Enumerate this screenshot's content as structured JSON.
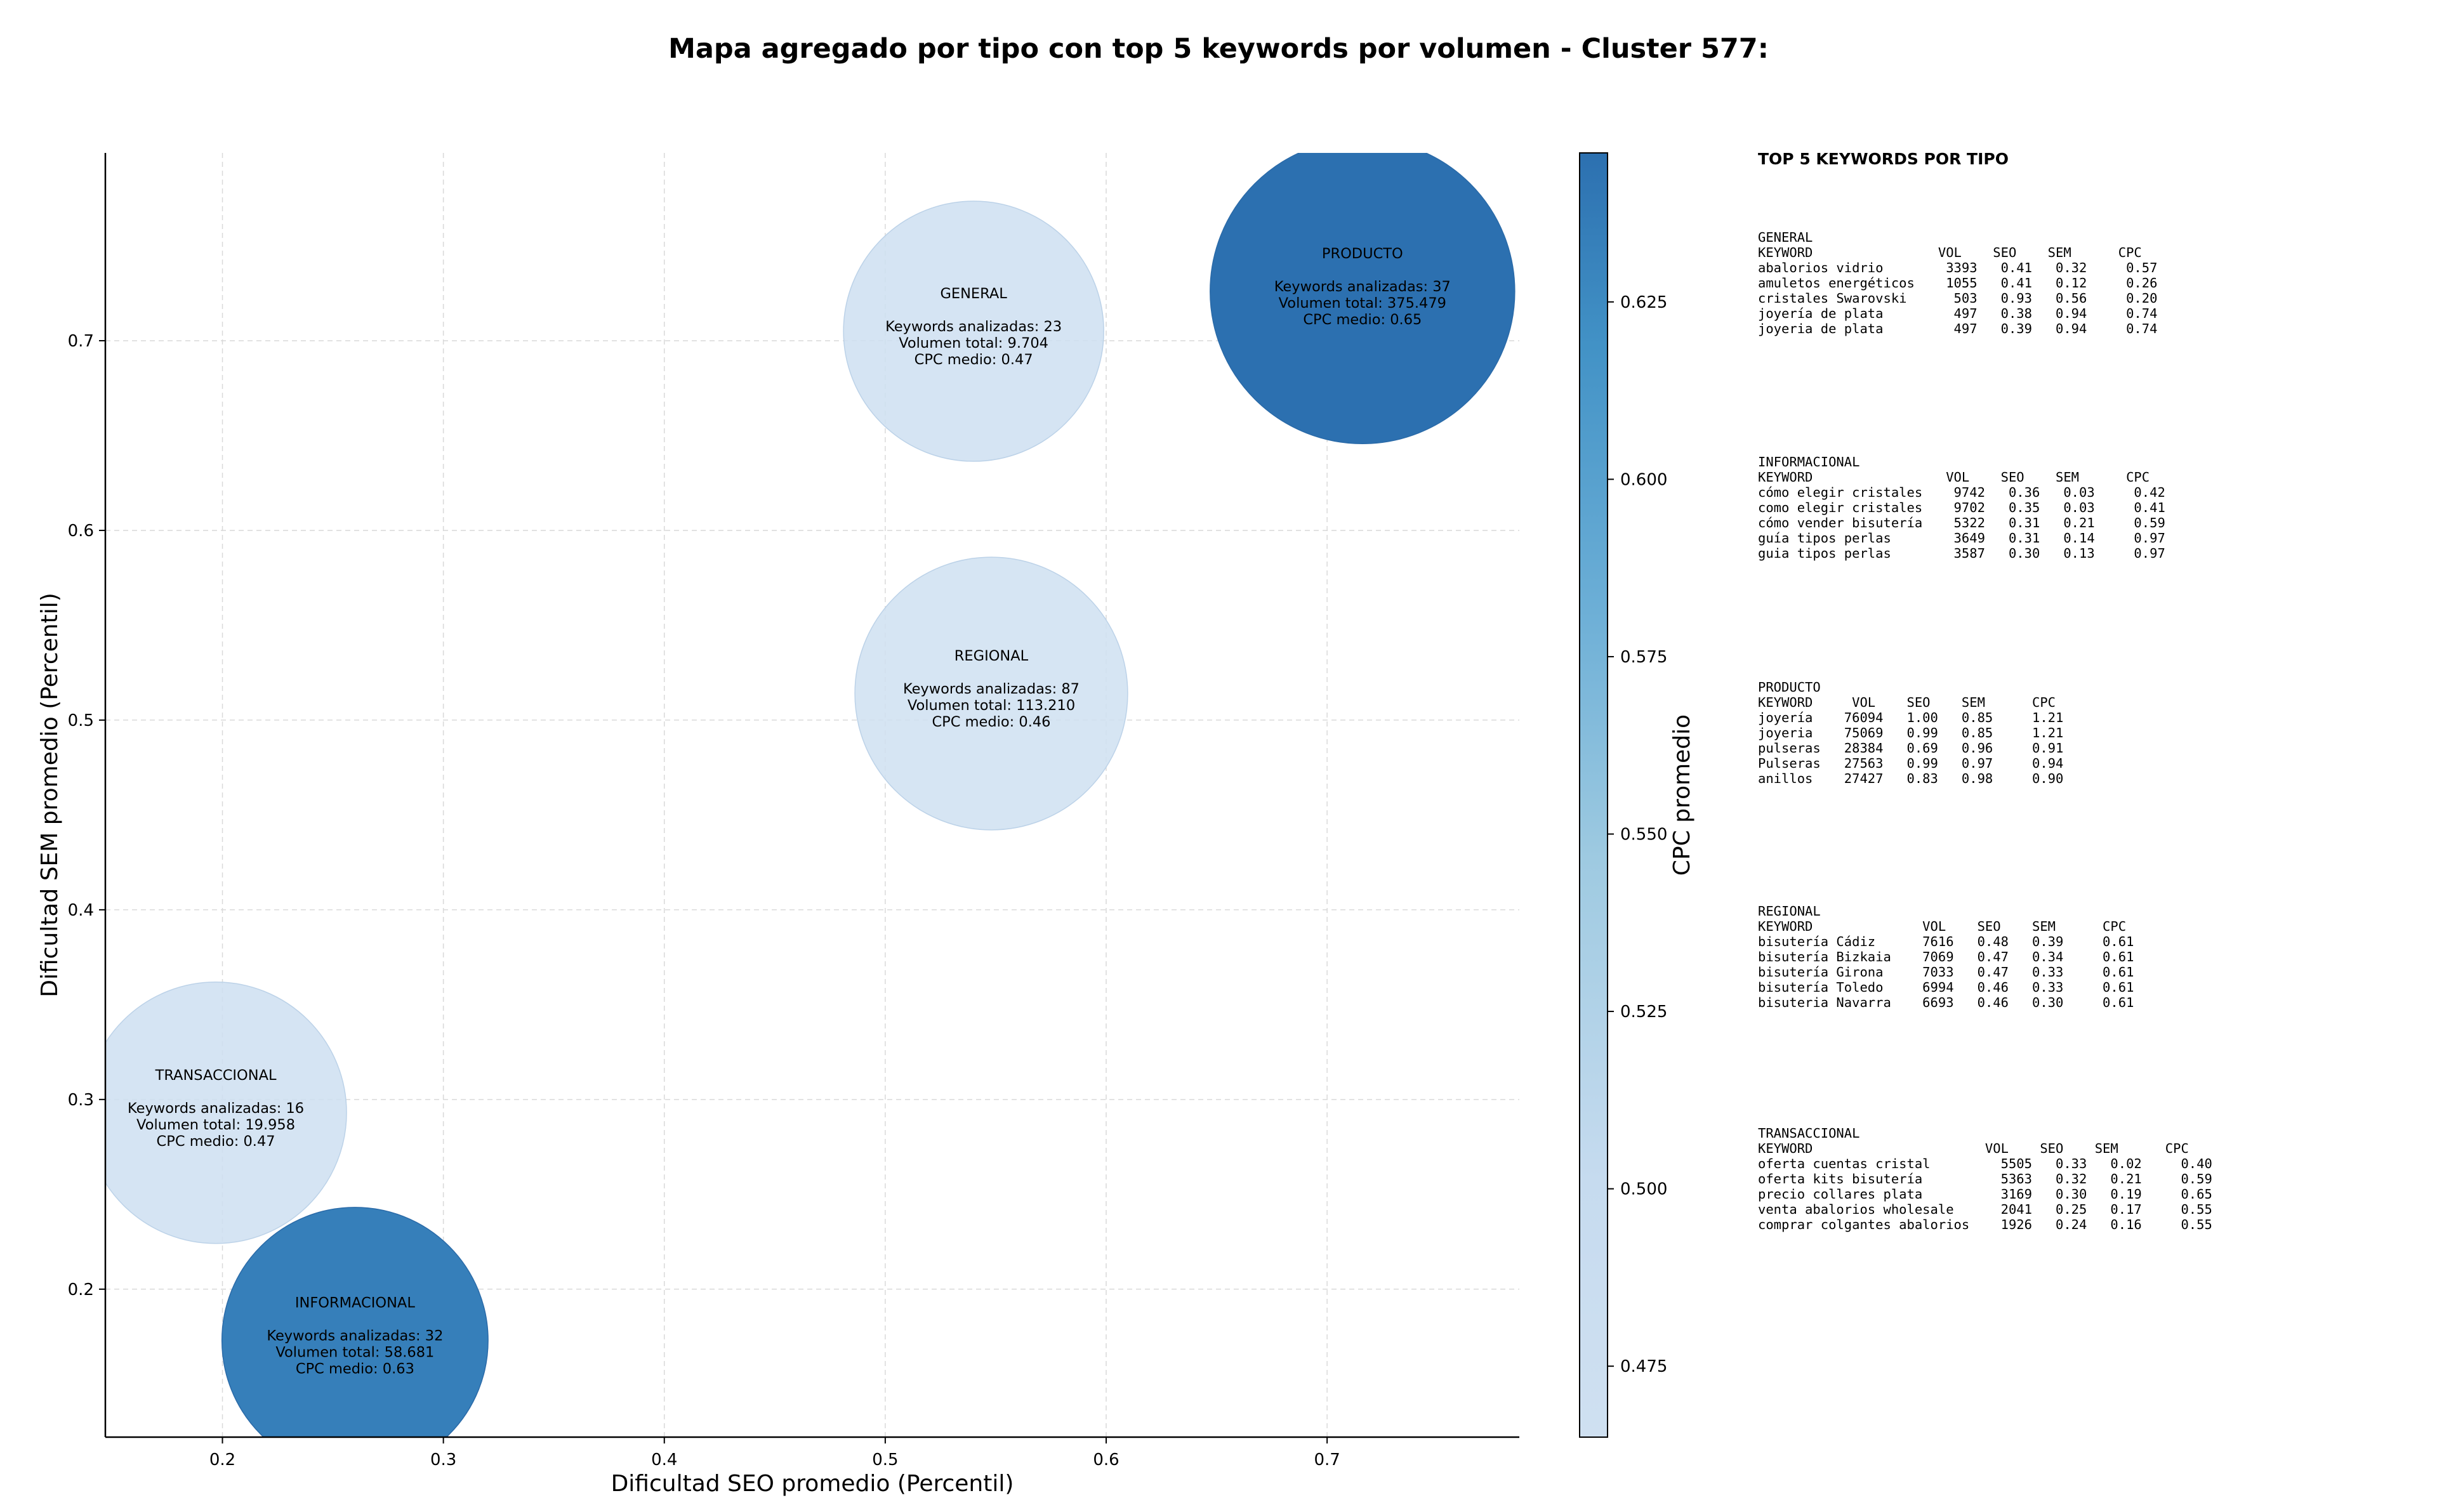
{
  "chart_data": {
    "type": "scatter",
    "title": "Mapa agregado por tipo con top 5 keywords por volumen - Cluster 577:",
    "xlabel": "Dificultad SEO promedio (Percentil)",
    "ylabel": "Dificultad SEM promedio (Percentil)",
    "xlim": [
      0.147,
      0.787
    ],
    "ylim": [
      0.122,
      0.799
    ],
    "xticks": [
      0.2,
      0.3,
      0.4,
      0.5,
      0.6,
      0.7
    ],
    "yticks": [
      0.2,
      0.3,
      0.4,
      0.5,
      0.6,
      0.7
    ],
    "grid": true,
    "colorbar": {
      "label": "CPC promedio",
      "range": [
        0.465,
        0.646
      ],
      "ticks": [
        0.475,
        0.5,
        0.525,
        0.55,
        0.575,
        0.6,
        0.625
      ],
      "colors": [
        "#cfe0f1",
        "#c6dbef",
        "#9ecae1",
        "#6baed6",
        "#4292c6",
        "#2c70b0"
      ]
    },
    "points": [
      {
        "name": "GENERAL",
        "x": 0.54,
        "y": 0.705,
        "keywords": "Keywords analizadas: 23",
        "volumen": "Volumen total: 9.704",
        "cpc": "CPC medio: 0.47",
        "cpc_value": 0.47
      },
      {
        "name": "PRODUCTO",
        "x": 0.716,
        "y": 0.726,
        "keywords": "Keywords analizadas: 37",
        "volumen": "Volumen total: 375.479",
        "cpc": "CPC medio: 0.65",
        "cpc_value": 0.65
      },
      {
        "name": "REGIONAL",
        "x": 0.548,
        "y": 0.514,
        "keywords": "Keywords analizadas: 87",
        "volumen": "Volumen total: 113.210",
        "cpc": "CPC medio: 0.46",
        "cpc_value": 0.46
      },
      {
        "name": "TRANSACCIONAL",
        "x": 0.197,
        "y": 0.293,
        "keywords": "Keywords analizadas: 16",
        "volumen": "Volumen total: 19.958",
        "cpc": "CPC medio: 0.47",
        "cpc_value": 0.47
      },
      {
        "name": "INFORMACIONAL",
        "x": 0.26,
        "y": 0.173,
        "keywords": "Keywords analizadas: 32",
        "volumen": "Volumen total: 58.681",
        "cpc": "CPC medio: 0.63",
        "cpc_value": 0.63
      }
    ]
  },
  "side_panel": {
    "title": "TOP 5 KEYWORDS POR TIPO",
    "blocks": [
      {
        "name": "GENERAL",
        "header": "KEYWORD                VOL    SEO    SEM      CPC",
        "rows": [
          "abalorios vidrio        3393   0.41   0.32     0.57",
          "amuletos energéticos    1055   0.41   0.12     0.26",
          "cristales Swarovski      503   0.93   0.56     0.20",
          "joyería de plata         497   0.38   0.94     0.74",
          "joyeria de plata         497   0.39   0.94     0.74"
        ]
      },
      {
        "name": "INFORMACIONAL",
        "header": "KEYWORD                 VOL    SEO    SEM      CPC",
        "rows": [
          "cómo elegir cristales    9742   0.36   0.03     0.42",
          "como elegir cristales    9702   0.35   0.03     0.41",
          "cómo vender bisutería    5322   0.31   0.21     0.59",
          "guía tipos perlas        3649   0.31   0.14     0.97",
          "guia tipos perlas        3587   0.30   0.13     0.97"
        ]
      },
      {
        "name": "PRODUCTO",
        "header": "KEYWORD     VOL    SEO    SEM      CPC",
        "rows": [
          "joyería    76094   1.00   0.85     1.21",
          "joyeria    75069   0.99   0.85     1.21",
          "pulseras   28384   0.69   0.96     0.91",
          "Pulseras   27563   0.99   0.97     0.94",
          "anillos    27427   0.83   0.98     0.90"
        ]
      },
      {
        "name": "REGIONAL",
        "header": "KEYWORD              VOL    SEO    SEM      CPC",
        "rows": [
          "bisutería Cádiz      7616   0.48   0.39     0.61",
          "bisutería Bizkaia    7069   0.47   0.34     0.61",
          "bisutería Girona     7033   0.47   0.33     0.61",
          "bisutería Toledo     6994   0.46   0.33     0.61",
          "bisuteria Navarra    6693   0.46   0.30     0.61"
        ]
      },
      {
        "name": "TRANSACCIONAL",
        "header": "KEYWORD                      VOL    SEO    SEM      CPC",
        "rows": [
          "oferta cuentas cristal         5505   0.33   0.02     0.40",
          "oferta kits bisutería          5363   0.32   0.21     0.59",
          "precio collares plata          3169   0.30   0.19     0.65",
          "venta abalorios wholesale      2041   0.25   0.17     0.55",
          "comprar colgantes abalorios    1926   0.24   0.16     0.55"
        ]
      }
    ]
  }
}
